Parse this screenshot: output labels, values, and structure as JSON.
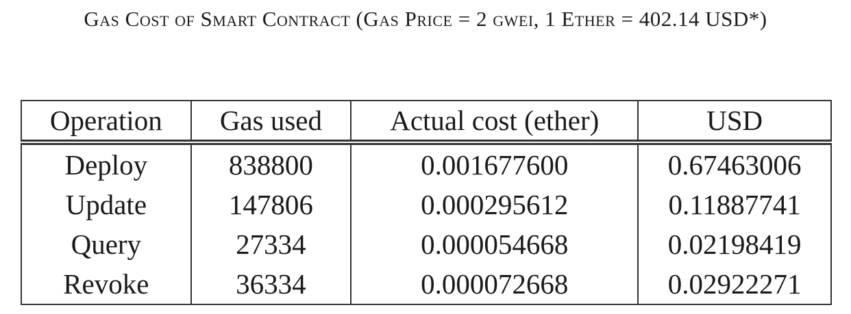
{
  "caption": "Gas Cost of Smart Contract (Gas Price = 2 gwei, 1 Ether = 402.14 USD*)",
  "table": {
    "header": [
      "Operation",
      "Gas used",
      "Actual cost (ether)",
      "USD"
    ],
    "rows": [
      [
        "Deploy",
        "838800",
        "0.001677600",
        "0.67463006"
      ],
      [
        "Update",
        "147806",
        "0.000295612",
        "0.11887741"
      ],
      [
        "Query",
        "27334",
        "0.000054668",
        "0.02198419"
      ],
      [
        "Revoke",
        "36334",
        "0.000072668",
        "0.02922271"
      ]
    ]
  }
}
